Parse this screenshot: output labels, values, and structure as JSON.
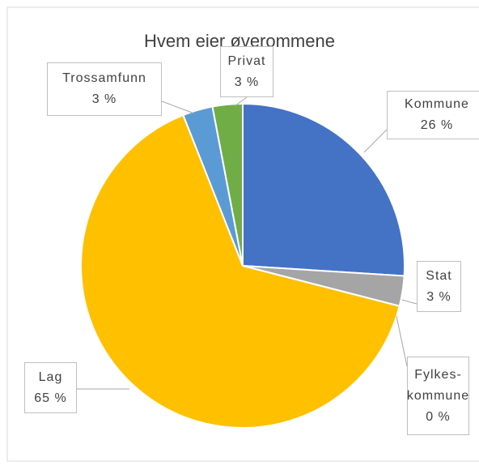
{
  "chart_data": {
    "type": "pie",
    "title": "Hvem eier øverommene",
    "categories": [
      "Kommune",
      "Stat",
      "Fylkes-kommune",
      "Lag",
      "Trossamfunn",
      "Privat"
    ],
    "values": [
      26,
      3,
      0,
      65,
      3,
      3
    ],
    "value_labels": [
      "26 %",
      "3 %",
      "0 %",
      "65 %",
      "3 %",
      "3 %"
    ],
    "colors": [
      "#4472c4",
      "#a5a5a5",
      "#ed7d31",
      "#ffc000",
      "#5b9bd5",
      "#70ad47"
    ]
  }
}
